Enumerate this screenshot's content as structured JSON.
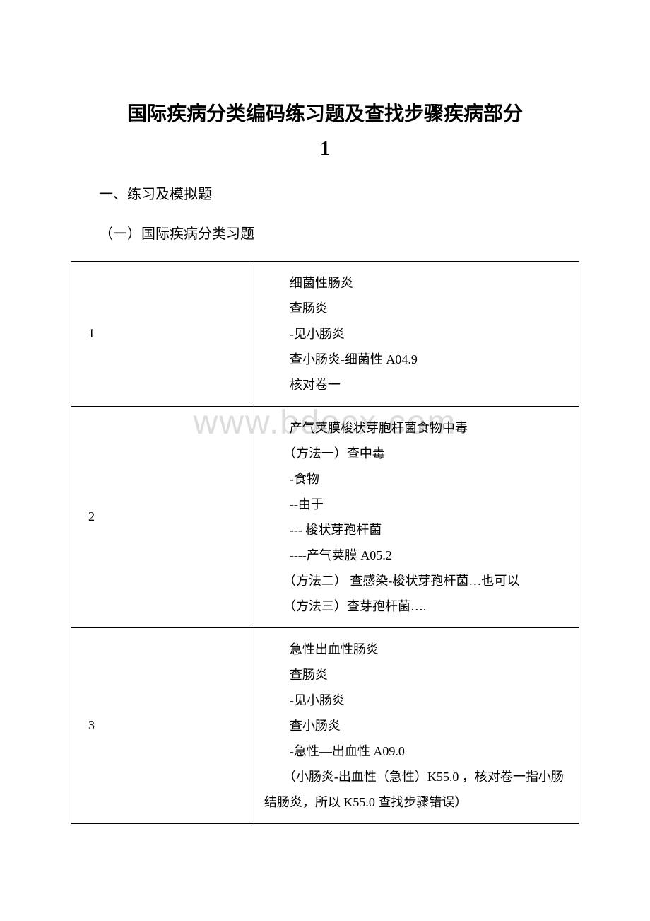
{
  "title_line1": "国际疾病分类编码练习题及查找步骤疾病部分",
  "title_line2": "1",
  "section1": "一、练习及模拟题",
  "section2": "（一）国际疾病分类习题",
  "watermark": "www.bdocx.com",
  "table": {
    "rows": [
      {
        "num": "1",
        "lines": [
          "　　细菌性肠炎",
          "　　查肠炎",
          "　　-见小肠炎",
          "　　查小肠炎-细菌性 A04.9",
          "　　核对卷一"
        ]
      },
      {
        "num": "2",
        "lines": [
          "　　产气荚膜梭状芽胞杆菌食物中毒",
          "　　（方法一）查中毒",
          "　　-食物",
          "　　--由于",
          "　　--- 梭状芽孢杆菌",
          "　　----产气荚膜 A05.2",
          "　　（方法二） 查感染-梭状芽孢杆菌…也可以",
          "　　（方法三）查芽孢杆菌…."
        ]
      },
      {
        "num": "3",
        "lines": [
          "　　急性出血性肠炎",
          "　　查肠炎",
          "　　-见小肠炎",
          "　　查小肠炎",
          "　　-急性—出血性 A09.0",
          "　　（小肠炎-出血性（急性）K55.0 ，核对卷一指小肠结肠炎，所以 K55.0 查找步骤错误）"
        ]
      }
    ]
  }
}
